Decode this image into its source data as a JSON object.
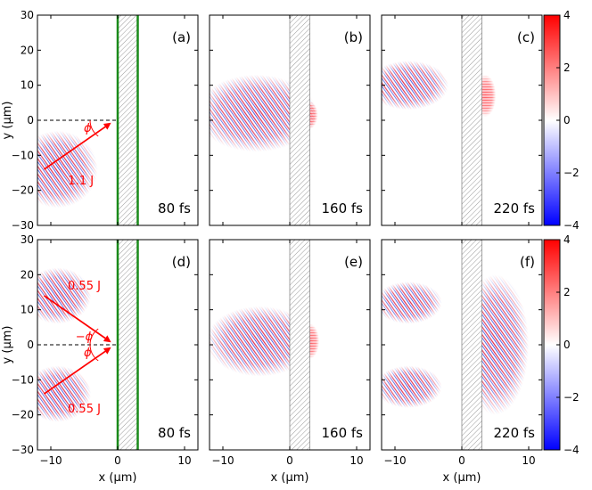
{
  "chart_data": {
    "type": "heatmap",
    "title": "",
    "xlabel": "x (μm)",
    "ylabel": "y (μm)",
    "xlim": [
      -12,
      12
    ],
    "ylim": [
      -30,
      30
    ],
    "x_ticks": [
      -10,
      0,
      10
    ],
    "y_ticks": [
      30,
      20,
      10,
      0,
      -10,
      -20,
      -30
    ],
    "x_tick_labels": [
      "−10",
      "0",
      "10"
    ],
    "y_tick_labels": [
      "30",
      "20",
      "10",
      "0",
      "−10",
      "−20",
      "−30"
    ],
    "colorbar": {
      "range": [
        -4,
        4
      ],
      "ticks": [
        4,
        2,
        0,
        -2,
        -4
      ],
      "tick_labels": [
        "4",
        "2",
        "0",
        "−2",
        "−4"
      ],
      "low_color": "#0000ff",
      "mid_color": "#ffffff",
      "high_color": "#ff0000"
    },
    "target_slab": {
      "x_start": 0,
      "x_end": 3
    },
    "panels": [
      {
        "id": "a",
        "label": "(a)",
        "time": "80 fs",
        "row": 0,
        "col": 0,
        "green_walls": true,
        "incidence_line_y": 0,
        "arrows": [
          {
            "from": [
              -11,
              -14
            ],
            "to": [
              -1.2,
              -1
            ]
          }
        ],
        "angle_labels": [
          {
            "text": "ϕ",
            "at": [
              -4.5,
              -2
            ]
          }
        ],
        "energy_labels": [
          {
            "text": "1.1 J",
            "at": [
              -5.5,
              -17
            ]
          }
        ],
        "blobs": [
          {
            "x": -9,
            "y": -14,
            "w": 6,
            "h": 11,
            "sign": 1
          }
        ]
      },
      {
        "id": "b",
        "label": "(b)",
        "time": "160 fs",
        "row": 0,
        "col": 1,
        "green_walls": false,
        "arrows": [],
        "angle_labels": [],
        "energy_labels": [],
        "blobs": [
          {
            "x": -5,
            "y": 2,
            "w": 9,
            "h": 11,
            "sign": 1
          },
          {
            "x": 2.9,
            "y": 1.5,
            "w": 1.3,
            "h": 4,
            "sign": 1
          }
        ]
      },
      {
        "id": "c",
        "label": "(c)",
        "time": "220 fs",
        "row": 0,
        "col": 2,
        "green_walls": false,
        "arrows": [],
        "angle_labels": [],
        "energy_labels": [],
        "blobs": [
          {
            "x": -8,
            "y": 10,
            "w": 6,
            "h": 7,
            "sign": 1
          },
          {
            "x": 3.5,
            "y": 7,
            "w": 1.6,
            "h": 6,
            "sign": 1
          }
        ]
      },
      {
        "id": "d",
        "label": "(d)",
        "time": "80 fs",
        "row": 1,
        "col": 0,
        "green_walls": true,
        "incidence_line_y": 0,
        "arrows": [
          {
            "from": [
              -11,
              14
            ],
            "to": [
              -1.2,
              1
            ]
          },
          {
            "from": [
              -11,
              -14
            ],
            "to": [
              -1.2,
              -1
            ]
          }
        ],
        "angle_labels": [
          {
            "text": "−ϕ",
            "at": [
              -5,
              2.5
            ]
          },
          {
            "text": "ϕ",
            "at": [
              -4.5,
              -2
            ]
          }
        ],
        "energy_labels": [
          {
            "text": "0.55 J",
            "at": [
              -5,
              17
            ]
          },
          {
            "text": "0.55 J",
            "at": [
              -5,
              -18
            ]
          }
        ],
        "blobs": [
          {
            "x": -9,
            "y": 14,
            "w": 5,
            "h": 8,
            "sign": 1
          },
          {
            "x": -9,
            "y": -14,
            "w": 5,
            "h": 8,
            "sign": 1
          }
        ]
      },
      {
        "id": "e",
        "label": "(e)",
        "time": "160 fs",
        "row": 1,
        "col": 1,
        "green_walls": false,
        "arrows": [],
        "angle_labels": [],
        "energy_labels": [],
        "blobs": [
          {
            "x": -4.5,
            "y": 1,
            "w": 8,
            "h": 10,
            "sign": 1
          },
          {
            "x": 3,
            "y": 1,
            "w": 1.4,
            "h": 5,
            "sign": 1
          }
        ]
      },
      {
        "id": "f",
        "label": "(f)",
        "time": "220 fs",
        "row": 1,
        "col": 2,
        "green_walls": false,
        "arrows": [],
        "angle_labels": [],
        "energy_labels": [],
        "blobs": [
          {
            "x": -8,
            "y": 12,
            "w": 5,
            "h": 6,
            "sign": 1
          },
          {
            "x": -8,
            "y": -12,
            "w": 5,
            "h": 6,
            "sign": 1
          },
          {
            "x": 5,
            "y": 0,
            "w": 5,
            "h": 20,
            "sign": 1
          }
        ]
      }
    ]
  }
}
